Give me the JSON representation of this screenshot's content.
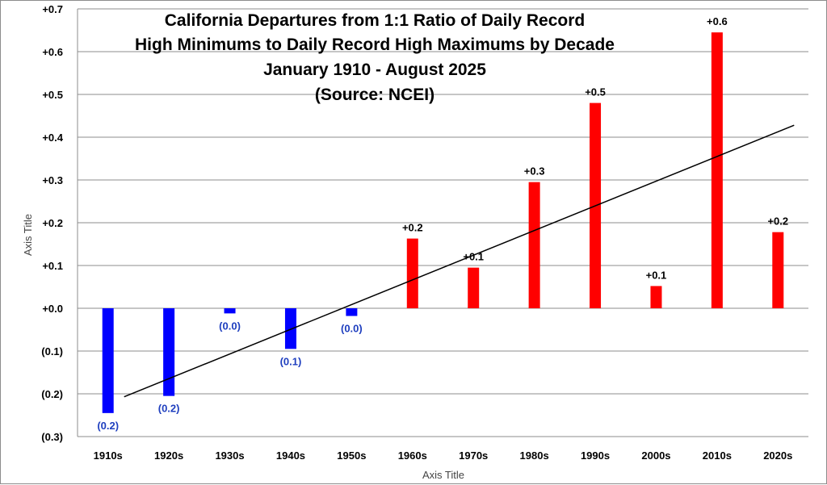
{
  "chart_data": {
    "type": "bar",
    "title_lines": [
      "California Departures from 1:1 Ratio of Daily Record",
      "High Minimums to Daily Record High Maximums by Decade",
      "January 1910 - August 2025",
      "(Source: NCEI)"
    ],
    "xlabel": "Axis Title",
    "ylabel": "Axis Title",
    "ylim": [
      -0.3,
      0.7
    ],
    "y_tick_values": [
      0.7,
      0.6,
      0.5,
      0.4,
      0.3,
      0.2,
      0.1,
      0.0,
      -0.1,
      -0.2,
      -0.3
    ],
    "y_tick_labels": [
      "+0.7",
      "+0.6",
      "+0.5",
      "+0.4",
      "+0.3",
      "+0.2",
      "+0.1",
      "+0.0",
      "(0.1)",
      "(0.2)",
      "(0.3)"
    ],
    "grid": true,
    "categories": [
      "1910s",
      "1920s",
      "1930s",
      "1940s",
      "1950s",
      "1960s",
      "1970s",
      "1980s",
      "1990s",
      "2000s",
      "2010s",
      "2020s"
    ],
    "values": [
      -0.245,
      -0.205,
      -0.012,
      -0.095,
      -0.018,
      0.163,
      0.095,
      0.295,
      0.48,
      0.052,
      0.645,
      0.178
    ],
    "data_labels": [
      "(0.2)",
      "(0.2)",
      "(0.0)",
      "(0.1)",
      "(0.0)",
      "+0.2",
      "+0.1",
      "+0.3",
      "+0.5",
      "+0.1",
      "+0.6",
      "+0.2"
    ],
    "positive_color": "#ff0000",
    "negative_color": "#0000ff",
    "negative_label_color": "#1f3fbf",
    "trendline": {
      "type": "linear",
      "start_value": -0.207,
      "end_value": 0.428
    }
  }
}
